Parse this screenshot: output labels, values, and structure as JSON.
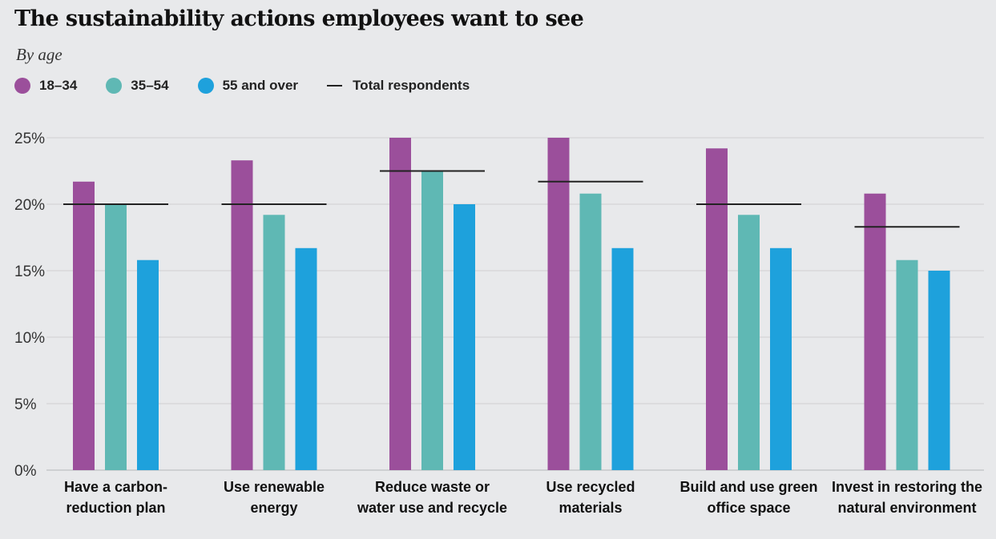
{
  "chart_data": {
    "type": "bar",
    "title": "The sustainability actions employees want to see",
    "subtitle": "By age",
    "xlabel": "",
    "ylabel": "",
    "ylim": [
      0,
      25
    ],
    "yticks": [
      0,
      5,
      10,
      15,
      20,
      25
    ],
    "ytick_labels": [
      "0%",
      "5%",
      "10%",
      "15%",
      "20%",
      "25%"
    ],
    "grid": true,
    "categories": [
      [
        "Have a carbon-",
        "reduction plan"
      ],
      [
        "Use renewable",
        "energy"
      ],
      [
        "Reduce waste or",
        "water use and recycle"
      ],
      [
        "Use recycled",
        "materials"
      ],
      [
        "Build and use green",
        "office space"
      ],
      [
        "Invest in restoring the",
        "natural environment"
      ]
    ],
    "series": [
      {
        "name": "18–34",
        "color": "#9b4f9b",
        "values": [
          21.7,
          23.3,
          25.0,
          25.0,
          24.2,
          20.8
        ]
      },
      {
        "name": "35–54",
        "color": "#5fb8b4",
        "values": [
          20.0,
          19.2,
          22.5,
          20.8,
          19.2,
          15.8
        ]
      },
      {
        "name": "55 and over",
        "color": "#1ea1dc",
        "values": [
          15.8,
          16.7,
          20.0,
          16.7,
          16.7,
          15.0
        ]
      }
    ],
    "total": {
      "name": "Total respondents",
      "color": "#222222",
      "values": [
        20.0,
        20.0,
        22.5,
        21.7,
        20.0,
        18.3
      ]
    }
  }
}
